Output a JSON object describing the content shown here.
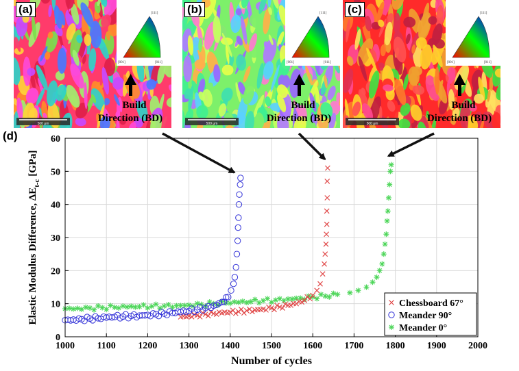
{
  "panels": [
    {
      "label": "(a)",
      "scale": "500 μm",
      "build_line1": "Build",
      "build_line2": "Direction (BD)",
      "ipf": [
        "[111]",
        "[001]",
        "[011]"
      ],
      "palette": [
        "#ff3b6b",
        "#ff8c2a",
        "#ffd23a",
        "#7be04a",
        "#2fd3c8",
        "#4a79ff",
        "#c84aff",
        "#ff4ad8",
        "#e0204a",
        "#a0f070"
      ]
    },
    {
      "label": "(b)",
      "scale": "500 μm",
      "build_line1": "Build",
      "build_line2": "Direction (BD)",
      "ipf": [
        "[111]",
        "[001]",
        "[011]"
      ],
      "palette": [
        "#7df06a",
        "#3fe0b0",
        "#e6ff4a",
        "#ff7ad0",
        "#b07aff",
        "#5ad0ff",
        "#c8ff60",
        "#ffb04a",
        "#40f090",
        "#9a66ff"
      ]
    },
    {
      "label": "(c)",
      "scale": "500 μm",
      "build_line1": "Build",
      "build_line2": "Direction (BD)",
      "ipf": [
        "[111]",
        "[001]",
        "[011]"
      ],
      "palette": [
        "#ff2a2a",
        "#ff7a2a",
        "#ffd02a",
        "#e03050",
        "#ff4a90",
        "#40e040",
        "#ff5050",
        "#f0a030",
        "#c02040",
        "#ffe060"
      ]
    }
  ],
  "panel_d_label": "(d)",
  "chart_data": {
    "type": "scatter",
    "xlabel": "Number of cycles",
    "ylabel_main": "Elastic Modulus Difference, ΔE",
    "ylabel_sub": "t-c",
    "ylabel_unit": " [GPa]",
    "xlim": [
      1000,
      2000
    ],
    "ylim": [
      0,
      60
    ],
    "xticks": [
      1000,
      1100,
      1200,
      1300,
      1400,
      1500,
      1600,
      1700,
      1800,
      1900,
      2000
    ],
    "yticks": [
      0,
      10,
      20,
      30,
      40,
      50,
      60
    ],
    "grid": true,
    "legend_position": "bottom-right",
    "series": [
      {
        "name": "Chessboard 67°",
        "marker": "x",
        "color": "#e04848",
        "points": [
          [
            1280,
            6
          ],
          [
            1300,
            6.3
          ],
          [
            1320,
            6.5
          ],
          [
            1340,
            6.8
          ],
          [
            1360,
            7
          ],
          [
            1380,
            7.2
          ],
          [
            1400,
            7.4
          ],
          [
            1420,
            7.6
          ],
          [
            1440,
            7.9
          ],
          [
            1460,
            8.1
          ],
          [
            1480,
            8.4
          ],
          [
            1500,
            8.7
          ],
          [
            1520,
            9
          ],
          [
            1540,
            9.5
          ],
          [
            1560,
            10
          ],
          [
            1580,
            11
          ],
          [
            1600,
            12.5
          ],
          [
            1610,
            14
          ],
          [
            1618,
            16
          ],
          [
            1624,
            19
          ],
          [
            1628,
            22
          ],
          [
            1630,
            25
          ],
          [
            1632,
            28
          ],
          [
            1633,
            31
          ],
          [
            1634,
            34
          ],
          [
            1634,
            38
          ],
          [
            1635,
            42
          ],
          [
            1635,
            47
          ],
          [
            1636,
            51
          ]
        ]
      },
      {
        "name": "Meander 90°",
        "marker": "o",
        "color": "#3434d8",
        "points": [
          [
            1000,
            5
          ],
          [
            1020,
            5.2
          ],
          [
            1040,
            5.3
          ],
          [
            1060,
            5.5
          ],
          [
            1080,
            5.6
          ],
          [
            1100,
            5.8
          ],
          [
            1120,
            6
          ],
          [
            1140,
            6.1
          ],
          [
            1160,
            6.3
          ],
          [
            1180,
            6.4
          ],
          [
            1200,
            6.6
          ],
          [
            1220,
            6.8
          ],
          [
            1240,
            7
          ],
          [
            1260,
            7.2
          ],
          [
            1280,
            7.5
          ],
          [
            1300,
            7.8
          ],
          [
            1320,
            8.2
          ],
          [
            1340,
            8.7
          ],
          [
            1360,
            9.4
          ],
          [
            1380,
            10.5
          ],
          [
            1395,
            12
          ],
          [
            1402,
            14
          ],
          [
            1408,
            16
          ],
          [
            1411,
            18
          ],
          [
            1414,
            21
          ],
          [
            1416,
            25
          ],
          [
            1418,
            29
          ],
          [
            1419,
            33
          ],
          [
            1420,
            36
          ],
          [
            1421,
            40
          ],
          [
            1422,
            43
          ],
          [
            1424,
            46
          ],
          [
            1425,
            48
          ]
        ]
      },
      {
        "name": "Meander 0°",
        "marker": "*",
        "color": "#4ed65a",
        "points": [
          [
            1000,
            8.5
          ],
          [
            1030,
            8.6
          ],
          [
            1060,
            8.7
          ],
          [
            1090,
            8.8
          ],
          [
            1120,
            8.9
          ],
          [
            1150,
            9
          ],
          [
            1180,
            9.1
          ],
          [
            1210,
            9.2
          ],
          [
            1240,
            9.3
          ],
          [
            1270,
            9.4
          ],
          [
            1300,
            9.6
          ],
          [
            1330,
            9.8
          ],
          [
            1360,
            10
          ],
          [
            1390,
            10.2
          ],
          [
            1420,
            10.4
          ],
          [
            1450,
            10.6
          ],
          [
            1480,
            10.9
          ],
          [
            1510,
            11.1
          ],
          [
            1540,
            11.4
          ],
          [
            1570,
            11.7
          ],
          [
            1600,
            12
          ],
          [
            1630,
            12.3
          ],
          [
            1660,
            12.8
          ],
          [
            1690,
            13.3
          ],
          [
            1710,
            14
          ],
          [
            1730,
            15
          ],
          [
            1745,
            16.5
          ],
          [
            1755,
            18
          ],
          [
            1762,
            20
          ],
          [
            1768,
            22
          ],
          [
            1772,
            25
          ],
          [
            1775,
            28
          ],
          [
            1778,
            31
          ],
          [
            1780,
            35
          ],
          [
            1782,
            38
          ],
          [
            1784,
            42
          ],
          [
            1786,
            46
          ],
          [
            1788,
            50
          ],
          [
            1790,
            52
          ]
        ]
      }
    ],
    "annotations": [
      {
        "target_panel": "(a)",
        "points_to": [
          1420,
          48
        ]
      },
      {
        "target_panel": "(b)",
        "points_to": [
          1636,
          52
        ]
      },
      {
        "target_panel": "(c)",
        "points_to": [
          1790,
          53
        ]
      }
    ]
  },
  "colors": {
    "grid": "#d9d9d9",
    "axis": "#000000",
    "arrow": "#111111"
  }
}
